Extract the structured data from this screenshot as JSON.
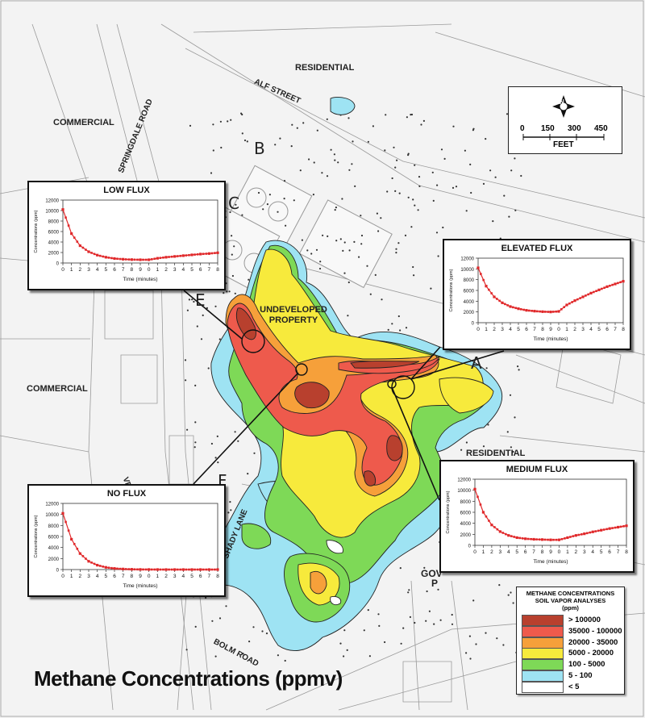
{
  "map": {
    "title": "Methane Concentrations (ppmv)",
    "labels": {
      "residential_top": "RESIDENTIAL",
      "alf_street": "ALF STREET",
      "springdale_road": "SPRINGDALE ROAD",
      "commercial_top": "COMMERCIAL",
      "commercial_left": "COMMERCIAL",
      "undeveloped": "UNDEVELOPED PROPERTY",
      "residential_right": "RESIDENTIAL",
      "shady_lane": "SHADY LANE",
      "bolm_road": "BOLM ROAD",
      "gov_partial": "GOV",
      "p_partial": "P",
      "vd_partial": "VD."
    },
    "markers": {
      "A": "A",
      "B": "B",
      "C": "C",
      "E": "E",
      "F": "F"
    }
  },
  "scale_bar": {
    "ticks": [
      "0",
      "150",
      "300",
      "450"
    ],
    "unit": "FEET",
    "north": "N"
  },
  "legend": {
    "title_line1": "METHANE CONCENTRATIONS",
    "title_line2": "SOIL VAPOR ANALYSES",
    "title_line3": "(ppm)",
    "classes": [
      {
        "label": "> 100000",
        "color": "#b8402e"
      },
      {
        "label": "35000 - 100000",
        "color": "#ee5a4c"
      },
      {
        "label": "20000 - 35000",
        "color": "#f6a03a"
      },
      {
        "label": "5000 - 20000",
        "color": "#f7ea3c"
      },
      {
        "label": "100 - 5000",
        "color": "#7ed957"
      },
      {
        "label": "5 - 100",
        "color": "#9ee3f3"
      },
      {
        "label": "< 5",
        "color": "#ffffff"
      }
    ]
  },
  "chart_data": [
    {
      "type": "line",
      "title": "LOW FLUX",
      "xlabel": "Time  (minutes)",
      "ylabel": "Concentrations  (ppm)",
      "ylim": [
        0,
        12000
      ],
      "y_ticks": [
        0,
        2000,
        4000,
        6000,
        8000,
        10000,
        12000
      ],
      "x_tick_labels": [
        "0",
        "1",
        "2",
        "3",
        "4",
        "5",
        "6",
        "7",
        "8",
        "9",
        "0",
        "1",
        "2",
        "3",
        "4",
        "5",
        "6",
        "7",
        "8"
      ],
      "series": [
        {
          "values": [
            10200,
            5600,
            3300,
            2150,
            1500,
            1100,
            850,
            720,
            650,
            620,
            620,
            900,
            1100,
            1250,
            1400,
            1550,
            1700,
            1800,
            1950
          ]
        }
      ]
    },
    {
      "type": "line",
      "title": "ELEVATED FLUX",
      "xlabel": "Time  (minutes)",
      "ylabel": "Concentrations  (ppm)",
      "ylim": [
        0,
        12000
      ],
      "y_ticks": [
        0,
        2000,
        4000,
        6000,
        8000,
        10000,
        12000
      ],
      "x_tick_labels": [
        "0",
        "1",
        "2",
        "3",
        "4",
        "5",
        "6",
        "7",
        "8",
        "9",
        "0",
        "1",
        "2",
        "3",
        "4",
        "5",
        "6",
        "7",
        "8"
      ],
      "series": [
        {
          "values": [
            10200,
            6800,
            4800,
            3700,
            3000,
            2600,
            2300,
            2150,
            2050,
            2000,
            2100,
            3300,
            4100,
            4800,
            5500,
            6100,
            6700,
            7200,
            7700
          ]
        }
      ]
    },
    {
      "type": "line",
      "title": "MEDIUM FLUX",
      "xlabel": "Time  (minutes)",
      "ylabel": "Concentrations  (ppm)",
      "ylim": [
        0,
        12000
      ],
      "y_ticks": [
        0,
        2000,
        4000,
        6000,
        8000,
        10000,
        12000
      ],
      "x_tick_labels": [
        "0",
        "1",
        "2",
        "3",
        "4",
        "5",
        "6",
        "7",
        "8",
        "9",
        "0",
        "1",
        "2",
        "3",
        "4",
        "5",
        "6",
        "7",
        "8"
      ],
      "series": [
        {
          "values": [
            10200,
            6000,
            3700,
            2500,
            1800,
            1400,
            1200,
            1100,
            1050,
            1000,
            1000,
            1400,
            1800,
            2100,
            2450,
            2750,
            3050,
            3300,
            3550
          ]
        }
      ]
    },
    {
      "type": "line",
      "title": "NO FLUX",
      "xlabel": "Time  (minutes)",
      "ylabel": "Concentrations  (ppm)",
      "ylim": [
        0,
        12000
      ],
      "y_ticks": [
        0,
        2000,
        4000,
        6000,
        8000,
        10000,
        12000
      ],
      "x_tick_labels": [
        "0",
        "1",
        "2",
        "3",
        "4",
        "5",
        "6",
        "7",
        "8",
        "9",
        "0",
        "1",
        "2",
        "3",
        "4",
        "5",
        "6",
        "7",
        "8"
      ],
      "series": [
        {
          "values": [
            10200,
            5500,
            2900,
            1500,
            800,
            400,
            200,
            100,
            50,
            20,
            10,
            5,
            0,
            0,
            0,
            0,
            0,
            0,
            0
          ]
        }
      ]
    }
  ]
}
